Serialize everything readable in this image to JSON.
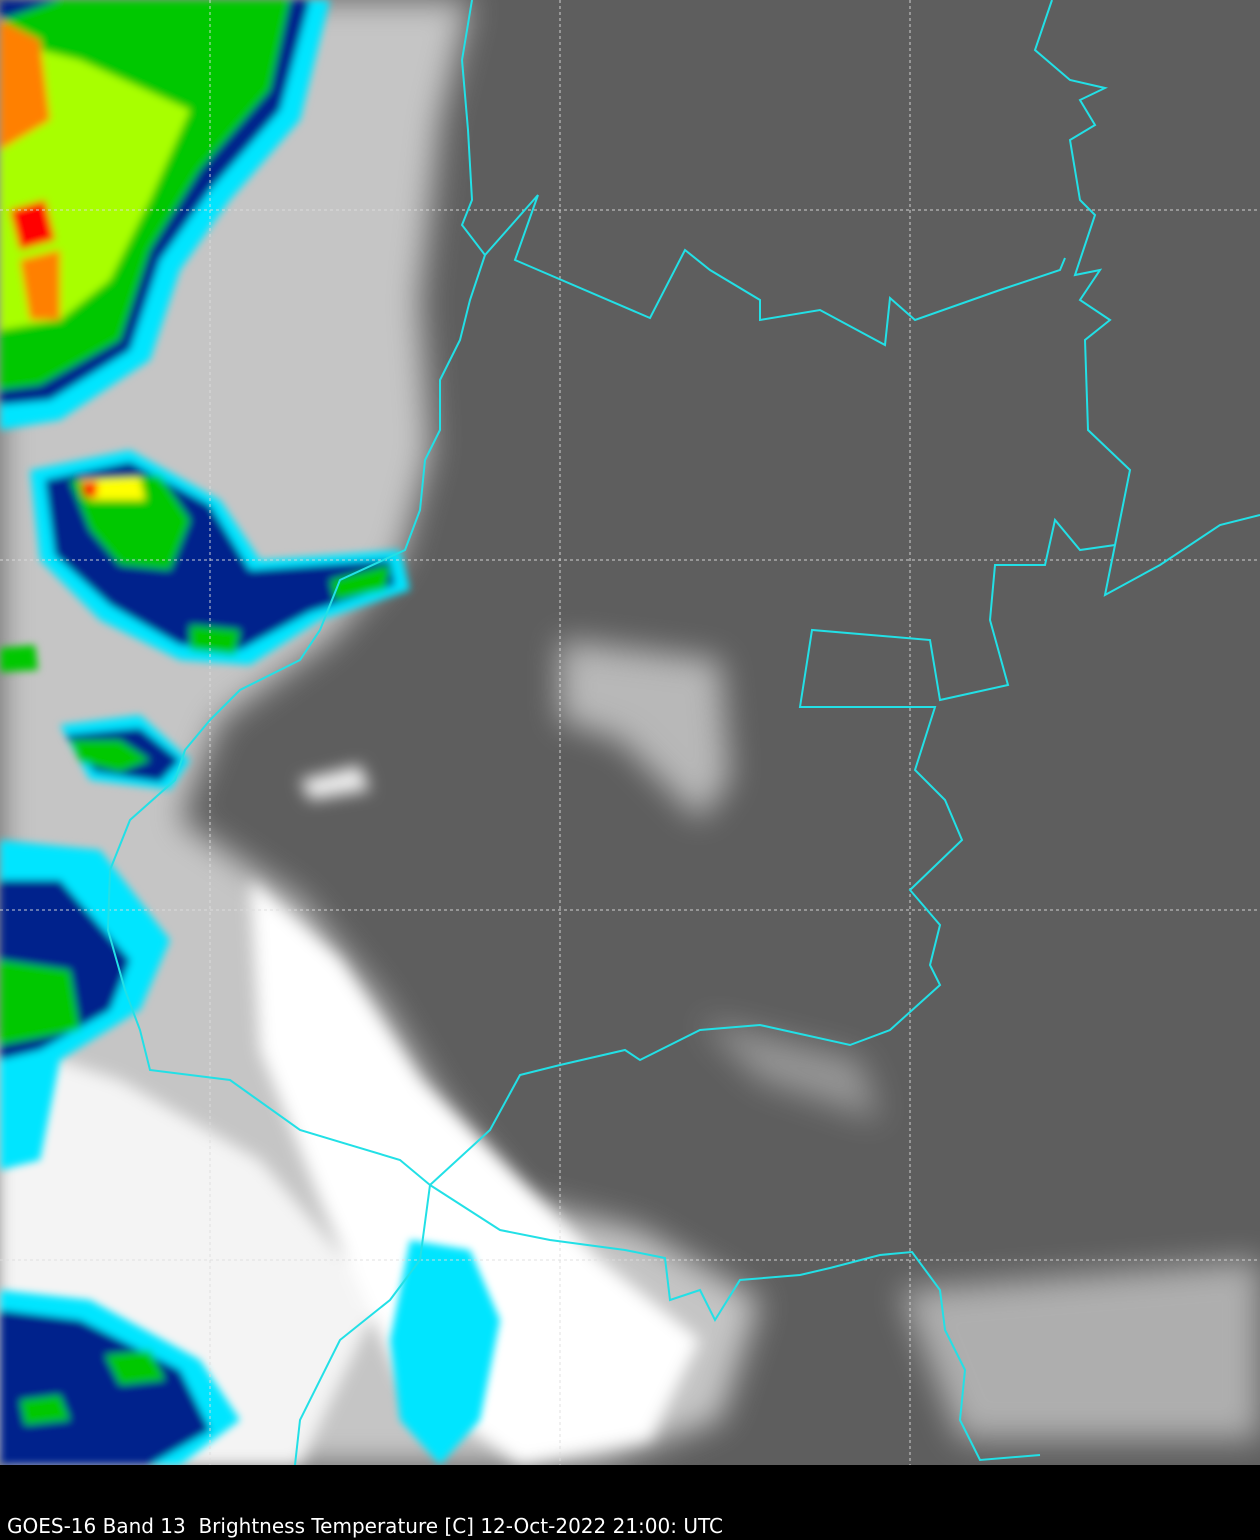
{
  "caption": "GOES-16 Band 13  Brightness Temperature [C] 12-Oct-2022 21:00: UTC",
  "map": {
    "background_color": "#5e5e5e",
    "border_color": "#22e0e6",
    "grid_style": "dashed",
    "grid_color": "#dddddd",
    "colorscale": [
      "#ffffff",
      "#00e5ff",
      "#00208c",
      "#00c800",
      "#a8ff00",
      "#ffff00",
      "#ff8000",
      "#ff0000"
    ]
  }
}
